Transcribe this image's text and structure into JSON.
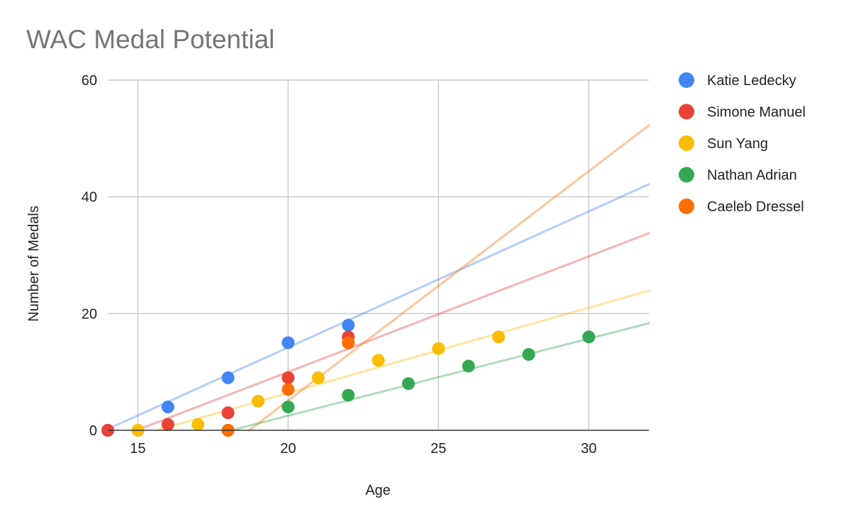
{
  "chart_data": {
    "type": "scatter",
    "title": "WAC Medal Potential",
    "xlabel": "Age",
    "ylabel": "Number of Medals",
    "xlim": [
      14,
      32
    ],
    "ylim": [
      0,
      60
    ],
    "x_ticks": [
      15,
      20,
      25,
      30
    ],
    "y_ticks": [
      0,
      20,
      40,
      60
    ],
    "grid": true,
    "legend_position": "right",
    "trendlines": true,
    "series": [
      {
        "name": "Katie Ledecky",
        "color": "#4285F4",
        "points": [
          [
            14,
            0
          ],
          [
            16,
            4
          ],
          [
            18,
            9
          ],
          [
            20,
            15
          ],
          [
            22,
            18
          ]
        ],
        "trend": {
          "slope": 2.33,
          "intercept": -32.4
        }
      },
      {
        "name": "Simone Manuel",
        "color": "#EA4335",
        "points": [
          [
            14,
            0
          ],
          [
            16,
            1
          ],
          [
            18,
            3
          ],
          [
            20,
            9
          ],
          [
            22,
            16
          ]
        ],
        "trend": {
          "slope": 1.98,
          "intercept": -29.6
        }
      },
      {
        "name": "Sun Yang",
        "color": "#FBBC04",
        "points": [
          [
            15,
            0
          ],
          [
            17,
            1
          ],
          [
            19,
            5
          ],
          [
            21,
            9
          ],
          [
            23,
            12
          ],
          [
            25,
            14
          ],
          [
            27,
            16
          ]
        ],
        "trend": {
          "slope": 1.46,
          "intercept": -22.8
        }
      },
      {
        "name": "Nathan Adrian",
        "color": "#34A853",
        "points": [
          [
            18,
            0
          ],
          [
            20,
            4
          ],
          [
            22,
            6
          ],
          [
            24,
            8
          ],
          [
            26,
            11
          ],
          [
            28,
            13
          ],
          [
            30,
            16
          ]
        ],
        "trend": {
          "slope": 1.32,
          "intercept": -23.9
        }
      },
      {
        "name": "Caeleb Dressel",
        "color": "#FF6D01",
        "points": [
          [
            18,
            0
          ],
          [
            20,
            7
          ],
          [
            22,
            15
          ]
        ],
        "trend": {
          "slope": 3.93,
          "intercept": -73.5
        }
      }
    ]
  }
}
